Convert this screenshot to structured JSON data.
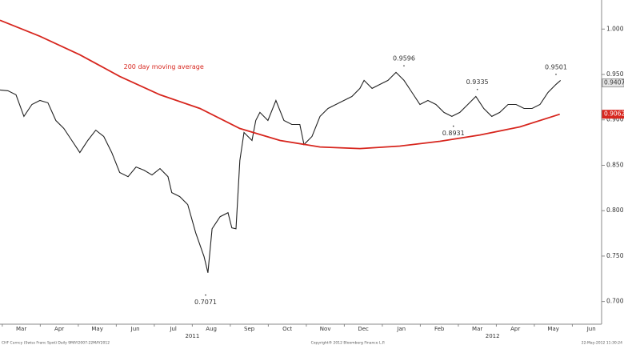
{
  "chart_data": {
    "type": "line",
    "xlim": [
      -0.06,
      15.77
    ],
    "ylim": [
      0.675,
      1.032
    ],
    "yticks": [
      {
        "value": 1.0,
        "label": "1.0000"
      },
      {
        "value": 0.95,
        "label": "0.9500"
      },
      {
        "value": 0.9,
        "label": "0.9000"
      },
      {
        "value": 0.85,
        "label": "0.8500"
      },
      {
        "value": 0.8,
        "label": "0.8000"
      },
      {
        "value": 0.75,
        "label": "0.7500"
      },
      {
        "value": 0.7,
        "label": "0.7000"
      }
    ],
    "xticks": [
      {
        "value": 0.5,
        "label": "Mar"
      },
      {
        "value": 1.5,
        "label": "Apr"
      },
      {
        "value": 2.5,
        "label": "May"
      },
      {
        "value": 3.5,
        "label": "Jun"
      },
      {
        "value": 4.5,
        "label": "Jul"
      },
      {
        "value": 5.5,
        "label": "Aug"
      },
      {
        "value": 6.5,
        "label": "Sep"
      },
      {
        "value": 7.5,
        "label": "Oct"
      },
      {
        "value": 8.5,
        "label": "Nov"
      },
      {
        "value": 9.5,
        "label": "Dec"
      },
      {
        "value": 10.5,
        "label": "Jan"
      },
      {
        "value": 11.5,
        "label": "Feb"
      },
      {
        "value": 12.5,
        "label": "Mar"
      },
      {
        "value": 13.5,
        "label": "Apr"
      },
      {
        "value": 14.5,
        "label": "May"
      },
      {
        "value": 15.5,
        "label": "Jun"
      }
    ],
    "year_labels": [
      {
        "value": 5,
        "label": "2011"
      },
      {
        "value": 12.9,
        "label": "2012"
      }
    ],
    "series": [
      {
        "color": "#222222",
        "last_tag": 0.9407,
        "x": [
          -0.06,
          0.15,
          0.36,
          0.57,
          0.78,
          0.99,
          1.2,
          1.41,
          1.62,
          1.83,
          2.04,
          2.25,
          2.46,
          2.67,
          2.88,
          3.09,
          3.31,
          3.52,
          3.73,
          3.94,
          4.15,
          4.36,
          4.46,
          4.67,
          4.88,
          5.09,
          5.31,
          5.41,
          5.52,
          5.73,
          5.94,
          6.04,
          6.15,
          6.25,
          6.36,
          6.57,
          6.67,
          6.78,
          6.99,
          7.2,
          7.41,
          7.62,
          7.83,
          7.94,
          8.15,
          8.36,
          8.57,
          8.78,
          8.99,
          9.2,
          9.41,
          9.52,
          9.73,
          9.94,
          10.15,
          10.36,
          10.57,
          10.78,
          10.99,
          11.2,
          11.41,
          11.62,
          11.83,
          12.04,
          12.25,
          12.46,
          12.67,
          12.88,
          13.09,
          13.31,
          13.52,
          13.73,
          13.94,
          14.15,
          14.36,
          14.57,
          14.69
        ],
        "values": [
          0.9329,
          0.932,
          0.9276,
          0.9038,
          0.917,
          0.9214,
          0.9188,
          0.8993,
          0.8905,
          0.8773,
          0.864,
          0.8773,
          0.8887,
          0.8817,
          0.864,
          0.842,
          0.8375,
          0.8481,
          0.8446,
          0.8393,
          0.8464,
          0.8375,
          0.8199,
          0.8155,
          0.8067,
          0.7757,
          0.7493,
          0.7316,
          0.7801,
          0.7934,
          0.7978,
          0.781,
          0.7801,
          0.8552,
          0.8861,
          0.8773,
          0.8993,
          0.9082,
          0.8993,
          0.9214,
          0.8993,
          0.8949,
          0.8949,
          0.8728,
          0.8817,
          0.9038,
          0.9126,
          0.917,
          0.9214,
          0.9258,
          0.9347,
          0.9435,
          0.9347,
          0.9391,
          0.9435,
          0.9523,
          0.9435,
          0.9302,
          0.917,
          0.9214,
          0.917,
          0.9082,
          0.9038,
          0.9082,
          0.917,
          0.9258,
          0.9126,
          0.9038,
          0.9082,
          0.917,
          0.917,
          0.9126,
          0.9126,
          0.917,
          0.9302,
          0.9391,
          0.9435
        ]
      },
      {
        "name": "200 day moving average",
        "color": "#d7261e",
        "last_tag": 0.9062,
        "x": [
          -0.06,
          0.99,
          2.04,
          3.09,
          4.15,
          5.2,
          6.25,
          7.31,
          8.36,
          9.41,
          10.46,
          11.52,
          12.57,
          13.62,
          14.67
        ],
        "values": [
          1.0097,
          0.9921,
          0.9717,
          0.9479,
          0.9276,
          0.9126,
          0.8905,
          0.8773,
          0.8702,
          0.8684,
          0.8711,
          0.8764,
          0.8834,
          0.8923,
          0.9062
        ]
      }
    ],
    "annotations": [
      {
        "x": 10.57,
        "value": 0.9596,
        "label": "0.9596"
      },
      {
        "x": 12.5,
        "value": 0.9335,
        "label": "0.9335"
      },
      {
        "x": 11.87,
        "value": 0.8931,
        "label": "0.8931"
      },
      {
        "x": 14.57,
        "value": 0.9501,
        "label": "0.9501"
      },
      {
        "x": 5.35,
        "value": 0.7071,
        "label": "0.7071"
      }
    ],
    "footer": [
      "CHF Curncy (Swiss Franc Spot) Daily 9MAY2007-22MAY2012",
      "Copyright® 2012 Bloomberg Finance L.P.",
      "22-May-2012 11:30:24"
    ]
  }
}
